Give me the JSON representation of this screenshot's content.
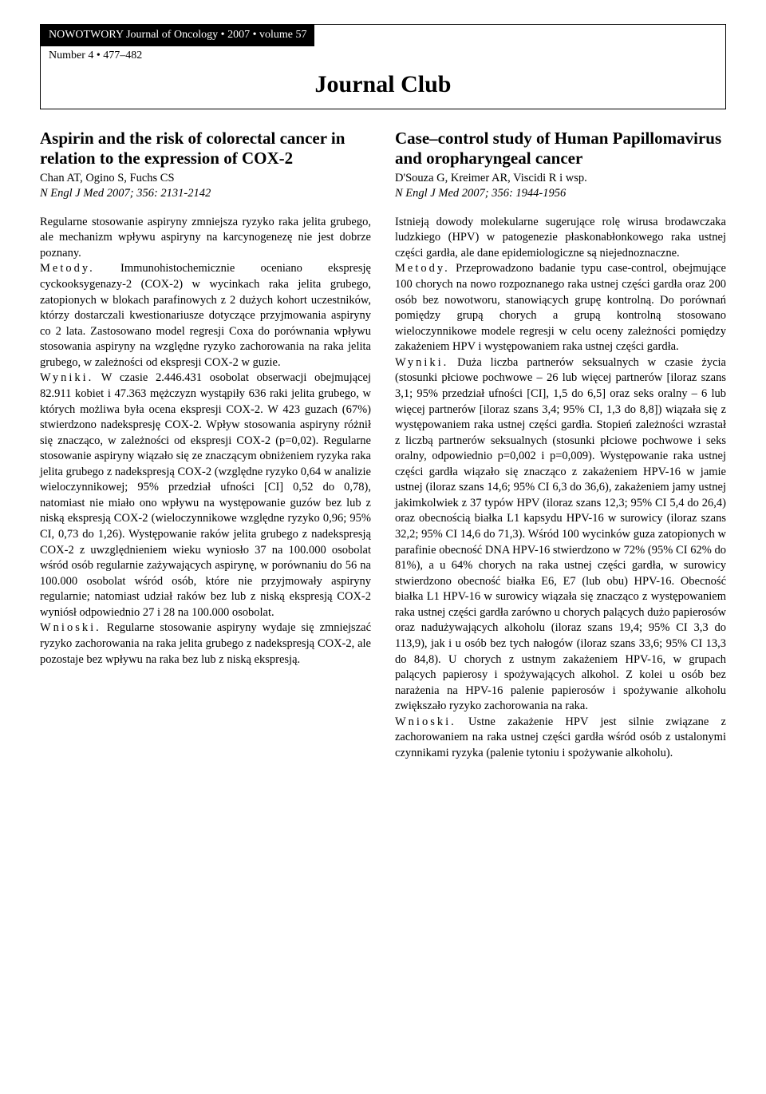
{
  "header": {
    "journal_line": "NOWOTWORY Journal of Oncology • 2007 • volume 57",
    "issue_line": "Number 4 • 477–482",
    "section_title": "Journal Club"
  },
  "left": {
    "title": "Aspirin and the risk of colorectal cancer in relation to the expression of COX-2",
    "authors": "Chan AT, Ogino S, Fuchs CS",
    "citation": "N Engl J Med 2007; 356: 2131-2142",
    "intro": "Regularne stosowanie aspiryny zmniejsza ryzyko raka jelita grubego, ale mechanizm wpływu aspiryny na karcynogenezę nie jest dobrze poznany.",
    "metody_label": "Metody.",
    "metody": " Immunohistochemicznie oceniano ekspresję cyckooksygenazy-2 (COX-2) w wycinkach raka jelita grubego, zatopionych w blokach parafinowych z 2 dużych kohort uczestników, którzy dostarczali kwestionariusze dotyczące przyjmowania aspiryny co 2 lata. Zastosowano model regresji Coxa do porównania wpływu stosowania aspiryny na względne ryzyko zachorowania na raka jelita grubego, w zależności od ekspresji COX-2 w guzie.",
    "wyniki_label": "Wyniki.",
    "wyniki": " W czasie 2.446.431 osobolat obserwacji obejmującej 82.911 kobiet i 47.363 mężczyzn wystąpiły 636 raki jelita grubego, w których możliwa była ocena ekspresji COX-2. W 423 guzach (67%) stwierdzono nadekspresję COX-2. Wpływ stosowania aspiryny różnił się znacząco, w zależności od ekspresji COX-2 (p=0,02). Regularne stosowanie aspiryny wiązało się ze znaczącym obniżeniem ryzyka raka jelita grubego z nadekspresją COX-2 (względne ryzyko 0,64 w analizie wieloczynnikowej; 95% przedział ufności [CI] 0,52 do 0,78), natomiast nie miało ono wpływu na występowanie guzów bez lub z niską ekspresją COX-2 (wieloczynnikowe względne ryzyko 0,96; 95% CI, 0,73 do 1,26). Występowanie raków jelita grubego z nadekspresją COX-2 z uwzględnieniem wieku wyniosło 37 na 100.000 osobolat wśród osób regularnie zażywających aspirynę, w porównaniu do 56 na 100.000 osobolat wśród osób, które nie przyjmowały aspiryny regularnie; natomiast udział raków bez lub z niską ekspresją COX-2 wyniósł odpowiednio 27 i 28 na 100.000 osobolat.",
    "wnioski_label": "Wnioski.",
    "wnioski": " Regularne stosowanie aspiryny wydaje się zmniejszać ryzyko zachorowania na raka jelita grubego z nadekspresją COX-2, ale pozostaje bez wpływu na raka bez lub z niską ekspresją."
  },
  "right": {
    "title": "Case–control study of Human Papillomavirus and oropharyngeal cancer",
    "authors": "D'Souza G, Kreimer AR, Viscidi R i wsp.",
    "citation": "N Engl J Med 2007; 356: 1944-1956",
    "intro": "Istnieją dowody molekularne sugerujące rolę wirusa brodawczaka ludzkiego (HPV) w patogenezie płaskonabłonkowego raka ustnej części gardła, ale dane epidemiologiczne są niejednoznaczne.",
    "metody_label": "Metody.",
    "metody": " Przeprowadzono badanie typu case-control, obejmujące 100 chorych na nowo rozpoznanego raka ustnej części gardła oraz 200 osób bez nowotworu, stanowiących grupę kontrolną. Do porównań pomiędzy grupą chorych a grupą kontrolną stosowano wieloczynnikowe modele regresji w celu oceny zależności pomiędzy zakażeniem HPV i występowaniem raka ustnej części gardła.",
    "wyniki_label": "Wyniki.",
    "wyniki": " Duża liczba partnerów seksualnych w czasie życia (stosunki płciowe pochwowe – 26 lub więcej partnerów [iloraz szans 3,1; 95% przedział ufności [CI], 1,5 do 6,5] oraz seks oralny – 6 lub więcej partnerów [iloraz szans 3,4; 95% CI, 1,3 do 8,8]) wiązała się z występowaniem raka ustnej części gardła. Stopień zależności wzrastał z liczbą partnerów seksualnych (stosunki płciowe pochwowe i seks oralny, odpowiednio p=0,002 i p=0,009). Występowanie raka ustnej części gardła wiązało się znacząco z zakażeniem HPV-16 w jamie ustnej (iloraz szans 14,6; 95% CI 6,3 do 36,6), zakażeniem jamy ustnej jakimkolwiek z 37 typów HPV (iloraz szans 12,3; 95% CI 5,4 do 26,4) oraz obecnością białka L1 kapsydu HPV-16 w surowicy (iloraz szans 32,2; 95% CI 14,6 do 71,3). Wśród 100 wycinków guza zatopionych w parafinie obecność DNA HPV-16 stwierdzono w 72% (95% CI 62% do 81%), a u 64% chorych na raka ustnej części gardła, w surowicy stwierdzono obecność białka E6, E7 (lub obu) HPV-16. Obecność białka L1 HPV-16 w surowicy wiązała się znacząco z występowaniem raka ustnej części gardła zarówno u chorych palących dużo papierosów oraz nadużywających alkoholu (iloraz szans 19,4; 95% CI 3,3 do 113,9), jak i u osób bez tych nałogów (iloraz szans 33,6; 95% CI 13,3 do 84,8). U chorych z ustnym zakażeniem HPV-16, w grupach palących papierosy i spożywających alkohol. Z kolei u osób bez narażenia na HPV-16 palenie papierosów i spożywanie alkoholu zwiększało ryzyko zachorowania na raka.",
    "wnioski_label": "Wnioski.",
    "wnioski": " Ustne zakażenie HPV jest silnie związane z zachorowaniem na raka ustnej części gardła wśród osób z ustalonymi czynnikami ryzyka (palenie tytoniu i spożywanie alkoholu)."
  }
}
